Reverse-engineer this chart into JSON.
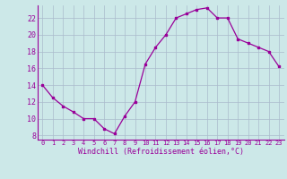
{
  "x": [
    0,
    1,
    2,
    3,
    4,
    5,
    6,
    7,
    8,
    9,
    10,
    11,
    12,
    13,
    14,
    15,
    16,
    17,
    18,
    19,
    20,
    21,
    22,
    23
  ],
  "y": [
    14,
    12.5,
    11.5,
    10.8,
    10,
    10,
    8.8,
    8.2,
    10.3,
    12,
    16.5,
    18.5,
    20,
    22,
    22.5,
    23,
    23.2,
    22,
    22,
    19.5,
    19,
    18.5,
    18,
    16.2
  ],
  "line_color": "#990099",
  "marker": "s",
  "marker_size": 2,
  "bg_color": "#cce8e8",
  "grid_color": "#aabbcc",
  "xlabel": "Windchill (Refroidissement éolien,°C)",
  "xlabel_color": "#990099",
  "tick_color": "#990099",
  "xlim": [
    -0.5,
    23.5
  ],
  "ylim": [
    7.5,
    23.5
  ],
  "yticks": [
    8,
    10,
    12,
    14,
    16,
    18,
    20,
    22
  ],
  "xticks": [
    0,
    1,
    2,
    3,
    4,
    5,
    6,
    7,
    8,
    9,
    10,
    11,
    12,
    13,
    14,
    15,
    16,
    17,
    18,
    19,
    20,
    21,
    22,
    23
  ]
}
